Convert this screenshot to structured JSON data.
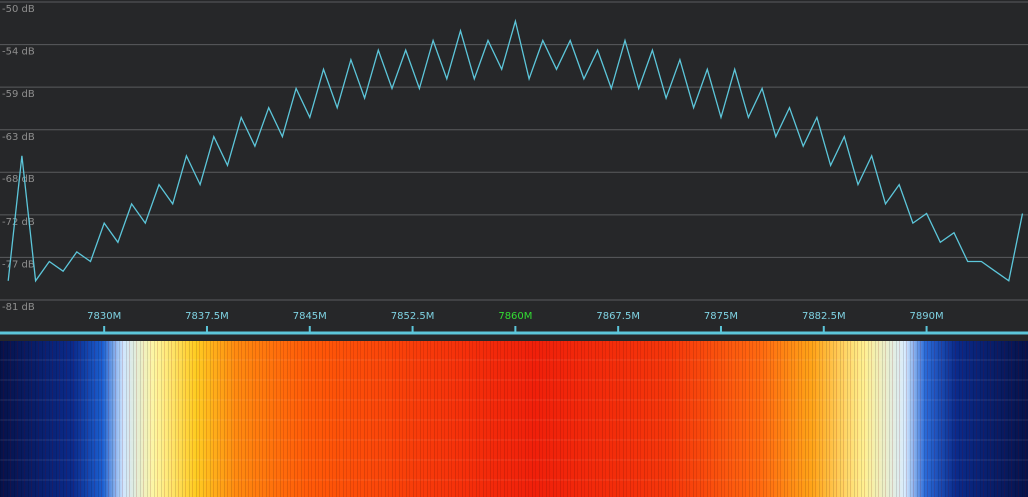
{
  "chart_data": {
    "type": "line",
    "x": [
      7823,
      7824,
      7825,
      7826,
      7827,
      7828,
      7829,
      7830,
      7831,
      7832,
      7833,
      7834,
      7835,
      7836,
      7837,
      7838,
      7839,
      7840,
      7841,
      7842,
      7843,
      7844,
      7845,
      7846,
      7847,
      7848,
      7849,
      7850,
      7851,
      7852,
      7853,
      7854,
      7855,
      7856,
      7857,
      7858,
      7859,
      7860,
      7861,
      7862,
      7863,
      7864,
      7865,
      7866,
      7867,
      7868,
      7869,
      7870,
      7871,
      7872,
      7873,
      7874,
      7875,
      7876,
      7877,
      7878,
      7879,
      7880,
      7881,
      7882,
      7883,
      7884,
      7885,
      7886,
      7887,
      7888,
      7889,
      7890,
      7891,
      7892,
      7893,
      7894,
      7895,
      7896,
      7897
    ],
    "values": [
      -79,
      -66,
      -79,
      -77,
      -78,
      -76,
      -77,
      -73,
      -75,
      -71,
      -73,
      -69,
      -71,
      -66,
      -69,
      -64,
      -67,
      -62,
      -65,
      -61,
      -64,
      -59,
      -62,
      -57,
      -61,
      -56,
      -60,
      -55,
      -59,
      -55,
      -59,
      -54,
      -58,
      -53,
      -58,
      -54,
      -57,
      -52,
      -58,
      -54,
      -57,
      -54,
      -58,
      -55,
      -59,
      -54,
      -59,
      -55,
      -60,
      -56,
      -61,
      -57,
      -62,
      -57,
      -62,
      -59,
      -64,
      -61,
      -65,
      -62,
      -67,
      -64,
      -69,
      -66,
      -71,
      -69,
      -73,
      -72,
      -75,
      -74,
      -77,
      -77,
      -78,
      -79,
      -72
    ],
    "color": "#5cc6da",
    "ylim": [
      -81,
      -50
    ],
    "yticks": [
      {
        "value": -50,
        "label": "-50 dB"
      },
      {
        "value": -54.43,
        "label": "-54 dB"
      },
      {
        "value": -58.86,
        "label": "-59 dB"
      },
      {
        "value": -63.29,
        "label": "-63 dB"
      },
      {
        "value": -67.71,
        "label": "-68 dB"
      },
      {
        "value": -72.14,
        "label": "-72 dB"
      },
      {
        "value": -76.57,
        "label": "-77 dB"
      },
      {
        "value": -81,
        "label": "-81 dB"
      }
    ],
    "xlim": [
      7822.4,
      7897.4
    ],
    "xticks": [
      {
        "value": 7830,
        "label": "7830M"
      },
      {
        "value": 7837.5,
        "label": "7837.5M"
      },
      {
        "value": 7845,
        "label": "7845M"
      },
      {
        "value": 7852.5,
        "label": "7852.5M"
      },
      {
        "value": 7860,
        "label": "7860M"
      },
      {
        "value": 7867.5,
        "label": "7867.5M"
      },
      {
        "value": 7875,
        "label": "7875M"
      },
      {
        "value": 7882.5,
        "label": "7882.5M"
      },
      {
        "value": 7890,
        "label": "7890M"
      }
    ],
    "highlight_xtick": 7860,
    "highlight_color": "#33dd33",
    "grid": true
  }
}
